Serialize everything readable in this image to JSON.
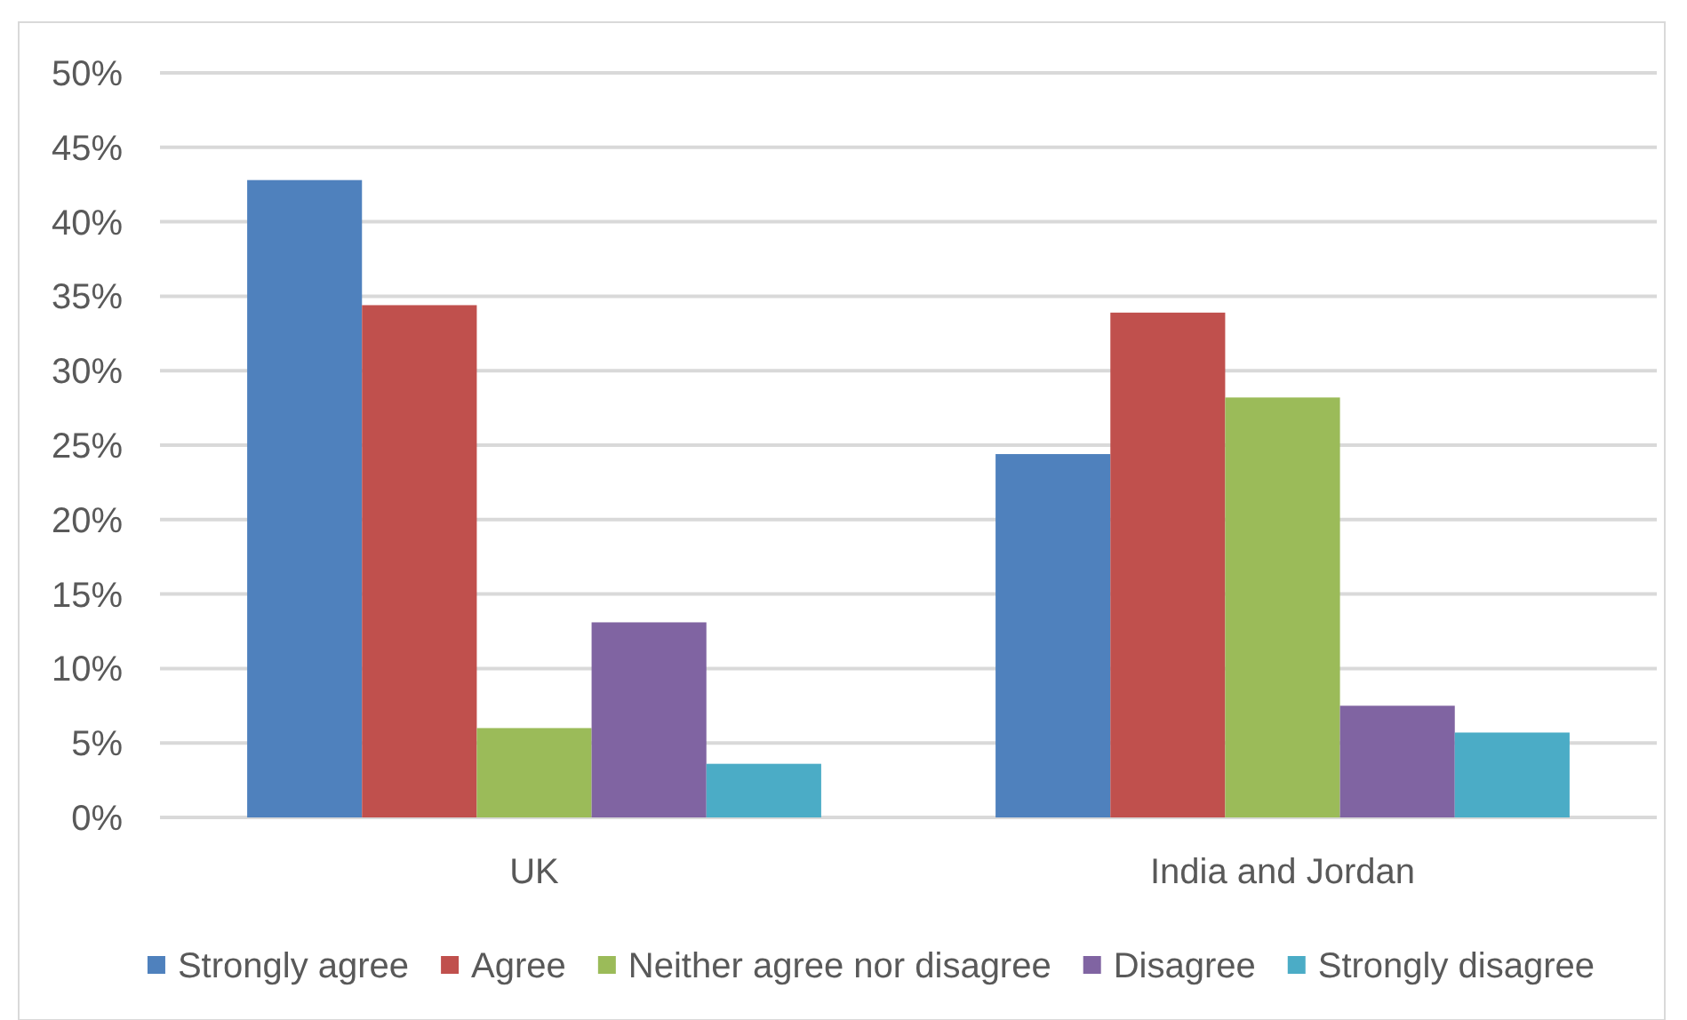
{
  "chart_data": {
    "type": "bar",
    "categories": [
      "UK",
      "India and Jordan"
    ],
    "series": [
      {
        "name": "Strongly agree",
        "color": "#4f81bd",
        "values": [
          42.8,
          24.4
        ]
      },
      {
        "name": "Agree",
        "color": "#c0504d",
        "values": [
          34.4,
          33.9
        ]
      },
      {
        "name": "Neither agree nor disagree",
        "color": "#9bbb59",
        "values": [
          6.0,
          28.2
        ]
      },
      {
        "name": "Disagree",
        "color": "#8064a2",
        "values": [
          13.1,
          7.5
        ]
      },
      {
        "name": "Strongly disagree",
        "color": "#4bacc6",
        "values": [
          3.6,
          5.7
        ]
      }
    ],
    "ylim": [
      0,
      50
    ],
    "yticks": [
      {
        "value": 0,
        "label": "0%"
      },
      {
        "value": 5,
        "label": "5%"
      },
      {
        "value": 10,
        "label": "10%"
      },
      {
        "value": 15,
        "label": "15%"
      },
      {
        "value": 20,
        "label": "20%"
      },
      {
        "value": 25,
        "label": "25%"
      },
      {
        "value": 30,
        "label": "30%"
      },
      {
        "value": 35,
        "label": "35%"
      },
      {
        "value": 40,
        "label": "40%"
      },
      {
        "value": 45,
        "label": "45%"
      },
      {
        "value": 50,
        "label": "50%"
      }
    ],
    "grid": "y",
    "legend": "bottom"
  }
}
